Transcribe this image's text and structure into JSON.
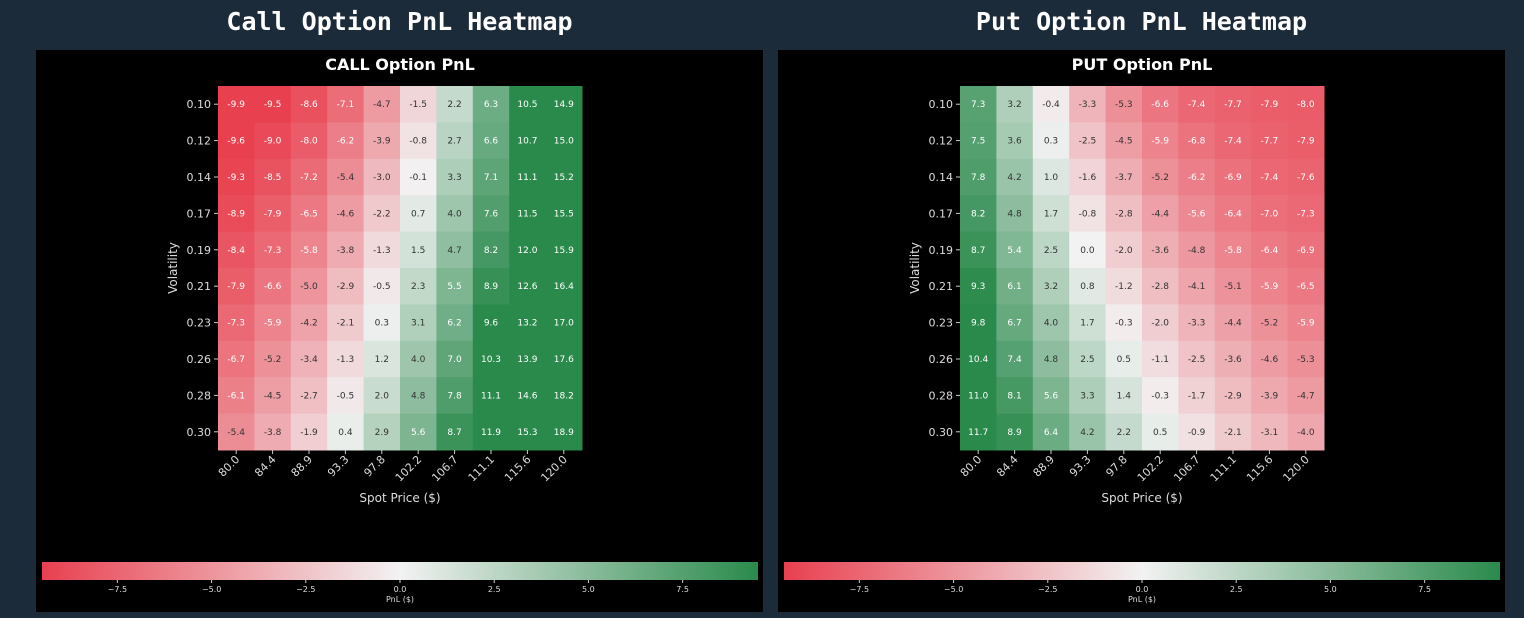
{
  "colors": {
    "page_bg": "#1c2b39",
    "panel_bg": "#000000",
    "negative": "#e8404f",
    "neutral": "#f2f2f2",
    "positive": "#2a8a4c"
  },
  "sections": {
    "call_title": "Call Option PnL Heatmap",
    "put_title": "Put Option PnL Heatmap"
  },
  "chart_data": [
    {
      "type": "heatmap",
      "title": "CALL Option PnL",
      "xlabel": "Spot Price ($)",
      "ylabel": "Volatility",
      "x": [
        "80.0",
        "84.4",
        "88.9",
        "93.3",
        "97.8",
        "102.2",
        "106.7",
        "111.1",
        "115.6",
        "120.0"
      ],
      "y": [
        "0.10",
        "0.12",
        "0.14",
        "0.17",
        "0.19",
        "0.21",
        "0.23",
        "0.26",
        "0.28",
        "0.30"
      ],
      "values": [
        [
          -9.9,
          -9.5,
          -8.6,
          -7.1,
          -4.7,
          -1.5,
          2.2,
          6.3,
          10.5,
          14.9
        ],
        [
          -9.6,
          -9.0,
          -8.0,
          -6.2,
          -3.9,
          -0.8,
          2.7,
          6.6,
          10.7,
          15.0
        ],
        [
          -9.3,
          -8.5,
          -7.2,
          -5.4,
          -3.0,
          -0.1,
          3.3,
          7.1,
          11.1,
          15.2
        ],
        [
          -8.9,
          -7.9,
          -6.5,
          -4.6,
          -2.2,
          0.7,
          4.0,
          7.6,
          11.5,
          15.5
        ],
        [
          -8.4,
          -7.3,
          -5.8,
          -3.8,
          -1.3,
          1.5,
          4.7,
          8.2,
          12.0,
          15.9
        ],
        [
          -7.9,
          -6.6,
          -5.0,
          -2.9,
          -0.5,
          2.3,
          5.5,
          8.9,
          12.6,
          16.4
        ],
        [
          -7.3,
          -5.9,
          -4.2,
          -2.1,
          0.3,
          3.1,
          6.2,
          9.6,
          13.2,
          17.0
        ],
        [
          -6.7,
          -5.2,
          -3.4,
          -1.3,
          1.2,
          4.0,
          7.0,
          10.3,
          13.9,
          17.6
        ],
        [
          -6.1,
          -4.5,
          -2.7,
          -0.5,
          2.0,
          4.8,
          7.8,
          11.1,
          14.6,
          18.2
        ],
        [
          -5.4,
          -3.8,
          -1.9,
          0.4,
          2.9,
          5.6,
          8.7,
          11.9,
          15.3,
          18.9
        ]
      ],
      "colorbar": {
        "label": "PnL ($)",
        "range": [
          -9.5,
          9.5
        ],
        "ticks": [
          "−7.5",
          "−5.0",
          "−2.5",
          "0.0",
          "2.5",
          "5.0",
          "7.5"
        ],
        "tick_values": [
          -7.5,
          -5.0,
          -2.5,
          0.0,
          2.5,
          5.0,
          7.5
        ],
        "placement": "bottom"
      }
    },
    {
      "type": "heatmap",
      "title": "PUT Option PnL",
      "xlabel": "Spot Price ($)",
      "ylabel": "Volatility",
      "x": [
        "80.0",
        "84.4",
        "88.9",
        "93.3",
        "97.8",
        "102.2",
        "106.7",
        "111.1",
        "115.6",
        "120.0"
      ],
      "y": [
        "0.10",
        "0.12",
        "0.14",
        "0.17",
        "0.19",
        "0.21",
        "0.23",
        "0.26",
        "0.28",
        "0.30"
      ],
      "values": [
        [
          7.3,
          3.2,
          -0.4,
          -3.3,
          -5.3,
          -6.6,
          -7.4,
          -7.7,
          -7.9,
          -8.0
        ],
        [
          7.5,
          3.6,
          0.3,
          -2.5,
          -4.5,
          -5.9,
          -6.8,
          -7.4,
          -7.7,
          -7.9
        ],
        [
          7.8,
          4.2,
          1.0,
          -1.6,
          -3.7,
          -5.2,
          -6.2,
          -6.9,
          -7.4,
          -7.6
        ],
        [
          8.2,
          4.8,
          1.7,
          -0.8,
          -2.8,
          -4.4,
          -5.6,
          -6.4,
          -7.0,
          -7.3
        ],
        [
          8.7,
          5.4,
          2.5,
          0.0,
          -2.0,
          -3.6,
          -4.8,
          -5.8,
          -6.4,
          -6.9
        ],
        [
          9.3,
          6.1,
          3.2,
          0.8,
          -1.2,
          -2.8,
          -4.1,
          -5.1,
          -5.9,
          -6.5
        ],
        [
          9.8,
          6.7,
          4.0,
          1.7,
          -0.3,
          -2.0,
          -3.3,
          -4.4,
          -5.2,
          -5.9
        ],
        [
          10.4,
          7.4,
          4.8,
          2.5,
          0.5,
          -1.1,
          -2.5,
          -3.6,
          -4.6,
          -5.3
        ],
        [
          11.0,
          8.1,
          5.6,
          3.3,
          1.4,
          -0.3,
          -1.7,
          -2.9,
          -3.9,
          -4.7
        ],
        [
          11.7,
          8.9,
          6.4,
          4.2,
          2.2,
          0.5,
          -0.9,
          -2.1,
          -3.1,
          -4.0
        ]
      ],
      "colorbar": {
        "label": "PnL ($)",
        "range": [
          -9.5,
          9.5
        ],
        "ticks": [
          "−7.5",
          "−5.0",
          "−2.5",
          "0.0",
          "2.5",
          "5.0",
          "7.5"
        ],
        "tick_values": [
          -7.5,
          -5.0,
          -2.5,
          0.0,
          2.5,
          5.0,
          7.5
        ],
        "placement": "bottom"
      }
    }
  ]
}
